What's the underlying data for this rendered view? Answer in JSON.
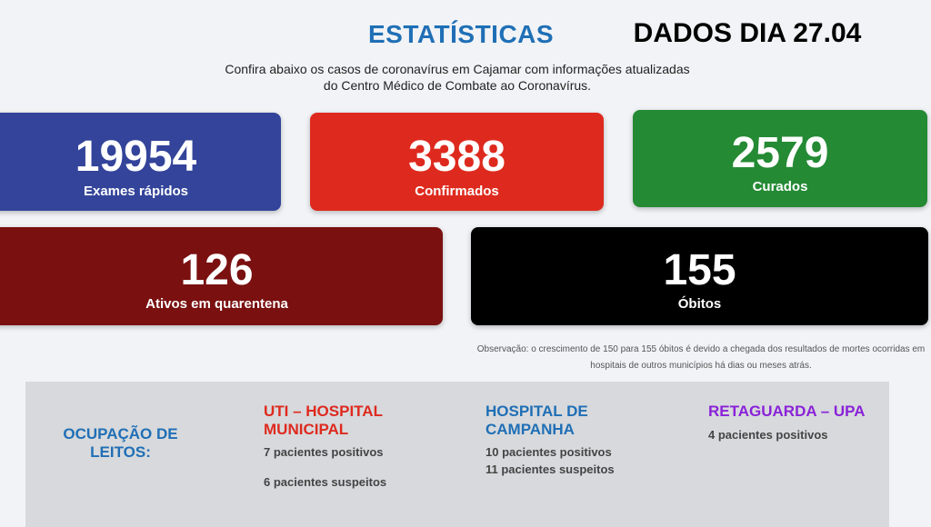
{
  "header": {
    "title": "ESTATÍSTICAS",
    "date_label": "DADOS DIA 27.04",
    "intro_line_1": "Confira abaixo os casos de coronavírus em Cajamar com informações atualizadas",
    "intro_line_2": "do Centro Médico de Combate ao Coronavírus."
  },
  "cards": {
    "exames": {
      "value": "19954",
      "label": "Exames rápidos",
      "color": "#33449a"
    },
    "confirmados": {
      "value": "3388",
      "label": "Confirmados",
      "color": "#de2a1e"
    },
    "curados": {
      "value": "2579",
      "label": "Curados",
      "color": "#248a34"
    },
    "ativos": {
      "value": "126",
      "label": "Ativos em quarentena",
      "color": "#7a1010"
    },
    "obitos": {
      "value": "155",
      "label": "Óbitos",
      "color": "#000000"
    }
  },
  "note": {
    "line_1": "Observação: o crescimento de 150 para 155 óbitos é devido a chegada dos resultados de mortes ocorridas em",
    "line_2": "hospitais de outros municípios há dias ou meses atrás."
  },
  "leitos": {
    "heading_1": "OCUPAÇÃO DE",
    "heading_2": "LEITOS:",
    "uti": {
      "title_1": "UTI – HOSPITAL",
      "title_2": "MUNICIPAL",
      "line_1": "7 pacientes positivos",
      "line_2": "6 pacientes suspeitos",
      "color": "#de2a1e"
    },
    "campanha": {
      "title_1": "HOSPITAL DE",
      "title_2": "CAMPANHA",
      "line_1": "10 pacientes positivos",
      "line_2": "11 pacientes suspeitos",
      "color": "#1f6fb6"
    },
    "retaguarda": {
      "title_1": "RETAGUARDA – UPA",
      "line_1": "4 pacientes positivos",
      "color": "#8a22d8"
    }
  }
}
